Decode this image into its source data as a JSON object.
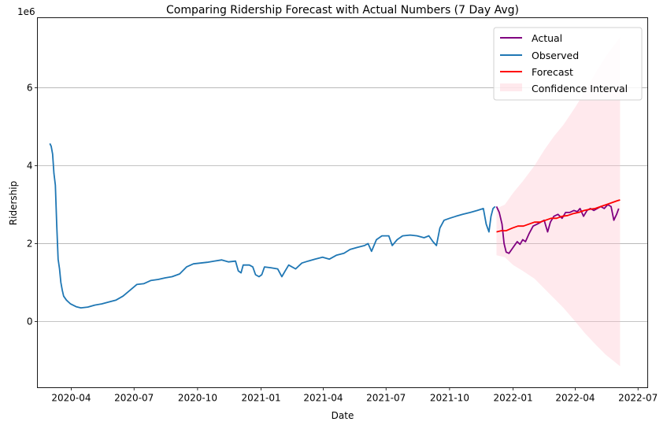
{
  "chart_data": {
    "type": "line",
    "title": "Comparing Ridership Forecast with Actual Numbers (7 Day Avg)",
    "xlabel": "Date",
    "ylabel": "Ridership",
    "y_offset_text": "1e6",
    "y_scale": 1000000,
    "xlim": [
      "2020-02-12",
      "2022-07-15"
    ],
    "ylim": [
      -1.7,
      7.8
    ],
    "grid": "y-major",
    "legend_position": "top-right",
    "x_ticks": [
      {
        "date": "2020-04-01",
        "label": "2020-04"
      },
      {
        "date": "2020-07-01",
        "label": "2020-07"
      },
      {
        "date": "2020-10-01",
        "label": "2020-10"
      },
      {
        "date": "2021-01-01",
        "label": "2021-01"
      },
      {
        "date": "2021-04-01",
        "label": "2021-04"
      },
      {
        "date": "2021-07-01",
        "label": "2021-07"
      },
      {
        "date": "2021-10-01",
        "label": "2021-10"
      },
      {
        "date": "2022-01-01",
        "label": "2022-01"
      },
      {
        "date": "2022-04-01",
        "label": "2022-04"
      },
      {
        "date": "2022-07-01",
        "label": "2022-07"
      }
    ],
    "y_ticks": [
      {
        "value": 0,
        "label": "0"
      },
      {
        "value": 2,
        "label": "2"
      },
      {
        "value": 4,
        "label": "4"
      },
      {
        "value": 6,
        "label": "6"
      }
    ],
    "series": [
      {
        "name": "Actual",
        "color": "#800080",
        "kind": "line",
        "points": [
          [
            "2021-12-08",
            2.95
          ],
          [
            "2021-12-12",
            2.8
          ],
          [
            "2021-12-16",
            2.5
          ],
          [
            "2021-12-19",
            2.0
          ],
          [
            "2021-12-22",
            1.78
          ],
          [
            "2021-12-26",
            1.75
          ],
          [
            "2021-12-30",
            1.85
          ],
          [
            "2022-01-03",
            1.95
          ],
          [
            "2022-01-07",
            2.05
          ],
          [
            "2022-01-11",
            1.98
          ],
          [
            "2022-01-15",
            2.1
          ],
          [
            "2022-01-19",
            2.05
          ],
          [
            "2022-01-24",
            2.25
          ],
          [
            "2022-01-30",
            2.45
          ],
          [
            "2022-02-05",
            2.5
          ],
          [
            "2022-02-10",
            2.55
          ],
          [
            "2022-02-15",
            2.6
          ],
          [
            "2022-02-20",
            2.3
          ],
          [
            "2022-02-24",
            2.55
          ],
          [
            "2022-03-01",
            2.7
          ],
          [
            "2022-03-07",
            2.75
          ],
          [
            "2022-03-13",
            2.65
          ],
          [
            "2022-03-18",
            2.8
          ],
          [
            "2022-03-24",
            2.8
          ],
          [
            "2022-03-30",
            2.85
          ],
          [
            "2022-04-04",
            2.82
          ],
          [
            "2022-04-08",
            2.9
          ],
          [
            "2022-04-13",
            2.7
          ],
          [
            "2022-04-18",
            2.85
          ],
          [
            "2022-04-23",
            2.9
          ],
          [
            "2022-04-28",
            2.85
          ],
          [
            "2022-05-03",
            2.9
          ],
          [
            "2022-05-08",
            2.95
          ],
          [
            "2022-05-13",
            2.9
          ],
          [
            "2022-05-18",
            3.0
          ],
          [
            "2022-05-23",
            2.95
          ],
          [
            "2022-05-27",
            2.6
          ],
          [
            "2022-05-31",
            2.75
          ],
          [
            "2022-06-03",
            2.9
          ]
        ]
      },
      {
        "name": "Observed",
        "color": "#1f77b4",
        "kind": "line",
        "points": [
          [
            "2020-03-01",
            4.57
          ],
          [
            "2020-03-03",
            4.5
          ],
          [
            "2020-03-05",
            4.3
          ],
          [
            "2020-03-07",
            3.8
          ],
          [
            "2020-03-09",
            3.5
          ],
          [
            "2020-03-11",
            2.5
          ],
          [
            "2020-03-13",
            1.6
          ],
          [
            "2020-03-15",
            1.35
          ],
          [
            "2020-03-17",
            1.0
          ],
          [
            "2020-03-19",
            0.8
          ],
          [
            "2020-03-21",
            0.65
          ],
          [
            "2020-03-25",
            0.55
          ],
          [
            "2020-03-31",
            0.45
          ],
          [
            "2020-04-08",
            0.38
          ],
          [
            "2020-04-15",
            0.35
          ],
          [
            "2020-04-25",
            0.37
          ],
          [
            "2020-05-05",
            0.42
          ],
          [
            "2020-05-15",
            0.45
          ],
          [
            "2020-05-25",
            0.5
          ],
          [
            "2020-06-05",
            0.55
          ],
          [
            "2020-06-15",
            0.65
          ],
          [
            "2020-06-25",
            0.8
          ],
          [
            "2020-07-05",
            0.95
          ],
          [
            "2020-07-15",
            0.97
          ],
          [
            "2020-07-25",
            1.05
          ],
          [
            "2020-08-05",
            1.08
          ],
          [
            "2020-08-15",
            1.12
          ],
          [
            "2020-08-25",
            1.15
          ],
          [
            "2020-09-05",
            1.22
          ],
          [
            "2020-09-15",
            1.4
          ],
          [
            "2020-09-25",
            1.48
          ],
          [
            "2020-10-05",
            1.5
          ],
          [
            "2020-10-15",
            1.52
          ],
          [
            "2020-10-25",
            1.55
          ],
          [
            "2020-11-05",
            1.58
          ],
          [
            "2020-11-15",
            1.53
          ],
          [
            "2020-11-25",
            1.55
          ],
          [
            "2020-11-29",
            1.3
          ],
          [
            "2020-12-03",
            1.25
          ],
          [
            "2020-12-06",
            1.45
          ],
          [
            "2020-12-15",
            1.45
          ],
          [
            "2020-12-20",
            1.4
          ],
          [
            "2020-12-24",
            1.2
          ],
          [
            "2020-12-29",
            1.15
          ],
          [
            "2021-01-02",
            1.2
          ],
          [
            "2021-01-06",
            1.4
          ],
          [
            "2021-01-15",
            1.38
          ],
          [
            "2021-01-25",
            1.35
          ],
          [
            "2021-01-31",
            1.15
          ],
          [
            "2021-02-05",
            1.3
          ],
          [
            "2021-02-10",
            1.45
          ],
          [
            "2021-02-20",
            1.35
          ],
          [
            "2021-03-01",
            1.5
          ],
          [
            "2021-03-10",
            1.55
          ],
          [
            "2021-03-20",
            1.6
          ],
          [
            "2021-03-31",
            1.65
          ],
          [
            "2021-04-10",
            1.6
          ],
          [
            "2021-04-20",
            1.7
          ],
          [
            "2021-05-01",
            1.75
          ],
          [
            "2021-05-10",
            1.85
          ],
          [
            "2021-05-20",
            1.9
          ],
          [
            "2021-05-31",
            1.95
          ],
          [
            "2021-06-05",
            2.0
          ],
          [
            "2021-06-10",
            1.8
          ],
          [
            "2021-06-17",
            2.1
          ],
          [
            "2021-06-25",
            2.2
          ],
          [
            "2021-06-30",
            2.2
          ],
          [
            "2021-07-05",
            2.2
          ],
          [
            "2021-07-10",
            1.95
          ],
          [
            "2021-07-17",
            2.1
          ],
          [
            "2021-07-25",
            2.2
          ],
          [
            "2021-08-05",
            2.22
          ],
          [
            "2021-08-15",
            2.2
          ],
          [
            "2021-08-25",
            2.15
          ],
          [
            "2021-09-01",
            2.2
          ],
          [
            "2021-09-07",
            2.05
          ],
          [
            "2021-09-12",
            1.95
          ],
          [
            "2021-09-17",
            2.4
          ],
          [
            "2021-09-23",
            2.6
          ],
          [
            "2021-10-01",
            2.65
          ],
          [
            "2021-10-10",
            2.7
          ],
          [
            "2021-10-20",
            2.75
          ],
          [
            "2021-10-31",
            2.8
          ],
          [
            "2021-11-10",
            2.85
          ],
          [
            "2021-11-19",
            2.9
          ],
          [
            "2021-11-23",
            2.5
          ],
          [
            "2021-11-27",
            2.3
          ],
          [
            "2021-11-30",
            2.7
          ],
          [
            "2021-12-03",
            2.9
          ],
          [
            "2021-12-06",
            2.95
          ]
        ]
      },
      {
        "name": "Forecast",
        "color": "#ff0000",
        "kind": "line",
        "points": [
          [
            "2021-12-08",
            2.3
          ],
          [
            "2021-12-15",
            2.33
          ],
          [
            "2021-12-22",
            2.33
          ],
          [
            "2021-12-31",
            2.4
          ],
          [
            "2022-01-08",
            2.45
          ],
          [
            "2022-01-16",
            2.45
          ],
          [
            "2022-01-24",
            2.5
          ],
          [
            "2022-02-01",
            2.55
          ],
          [
            "2022-02-09",
            2.55
          ],
          [
            "2022-02-17",
            2.6
          ],
          [
            "2022-02-25",
            2.65
          ],
          [
            "2022-03-05",
            2.65
          ],
          [
            "2022-03-13",
            2.7
          ],
          [
            "2022-03-21",
            2.72
          ],
          [
            "2022-03-29",
            2.77
          ],
          [
            "2022-04-06",
            2.8
          ],
          [
            "2022-04-14",
            2.85
          ],
          [
            "2022-04-22",
            2.88
          ],
          [
            "2022-04-30",
            2.9
          ],
          [
            "2022-05-08",
            2.95
          ],
          [
            "2022-05-16",
            3.0
          ],
          [
            "2022-05-24",
            3.05
          ],
          [
            "2022-06-01",
            3.1
          ],
          [
            "2022-06-05",
            3.12
          ]
        ]
      },
      {
        "name": "Confidence Interval",
        "color": "#ffc0cb",
        "kind": "band",
        "points": [
          [
            "2021-12-08",
            1.7,
            2.9
          ],
          [
            "2021-12-20",
            1.65,
            3.0
          ],
          [
            "2022-01-01",
            1.45,
            3.3
          ],
          [
            "2022-01-15",
            1.3,
            3.6
          ],
          [
            "2022-02-01",
            1.1,
            4.0
          ],
          [
            "2022-02-15",
            0.85,
            4.4
          ],
          [
            "2022-03-01",
            0.6,
            4.75
          ],
          [
            "2022-03-15",
            0.35,
            5.05
          ],
          [
            "2022-04-01",
            0.0,
            5.5
          ],
          [
            "2022-04-15",
            -0.3,
            5.9
          ],
          [
            "2022-05-01",
            -0.6,
            6.4
          ],
          [
            "2022-05-15",
            -0.85,
            6.8
          ],
          [
            "2022-06-05",
            -1.15,
            7.3
          ]
        ]
      }
    ]
  }
}
